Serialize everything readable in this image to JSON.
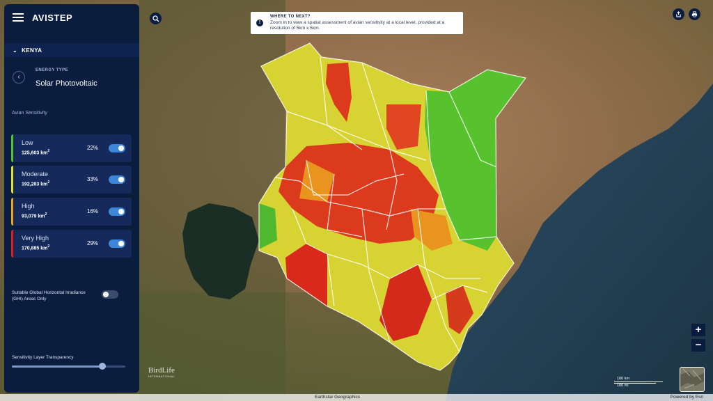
{
  "app": {
    "brand": "AVISTEP"
  },
  "sidebar": {
    "country": "KENYA",
    "energy_type_label": "ENERGY TYPE",
    "energy_type_value": "Solar Photovoltaic",
    "avian_title": "Avian Sensitivity",
    "levels": [
      {
        "name": "Low",
        "area": "125,603 km",
        "area_sup": "2",
        "percent": "22%",
        "color": "#4ec62c",
        "enabled": true
      },
      {
        "name": "Moderate",
        "area": "192,283 km",
        "area_sup": "2",
        "percent": "33%",
        "color": "#e4e225",
        "enabled": true
      },
      {
        "name": "High",
        "area": "93,079 km",
        "area_sup": "2",
        "percent": "16%",
        "color": "#f0a318",
        "enabled": true
      },
      {
        "name": "Very High",
        "area": "170,885 km",
        "area_sup": "2",
        "percent": "29%",
        "color": "#e21c1c",
        "enabled": true
      }
    ],
    "ghi_label": "Suitable Global Horizontal Irradiance (GHI) Areas Only",
    "ghi_enabled": false,
    "transparency_label": "Sensitivity Layer Transparency",
    "transparency_value": 0.8
  },
  "info": {
    "title": "WHERE TO NEXT?",
    "text": "Zoom in to view a spatial assessment of avian sensitivity at a local level, provided at a resolution of 5km x 5km."
  },
  "map": {
    "scale_km": "100 km",
    "scale_mi": "100 mi",
    "attribution": "Earthstar Geographics",
    "powered_by": "Powered by Esri",
    "logo": "BirdLife",
    "logo_sub": "INTERNATIONAL"
  },
  "icons": {
    "menu": "menu-icon",
    "search": "search-icon",
    "share": "share-icon",
    "print": "print-icon",
    "back": "chevron-left-icon",
    "collapse": "chevron-down-icon",
    "info": "info-icon",
    "zoom_in": "plus-icon",
    "zoom_out": "minus-icon"
  },
  "controls": {
    "zoom_in": "+",
    "zoom_out": "−",
    "back": "‹",
    "collapse": "⌄",
    "info": "!"
  }
}
